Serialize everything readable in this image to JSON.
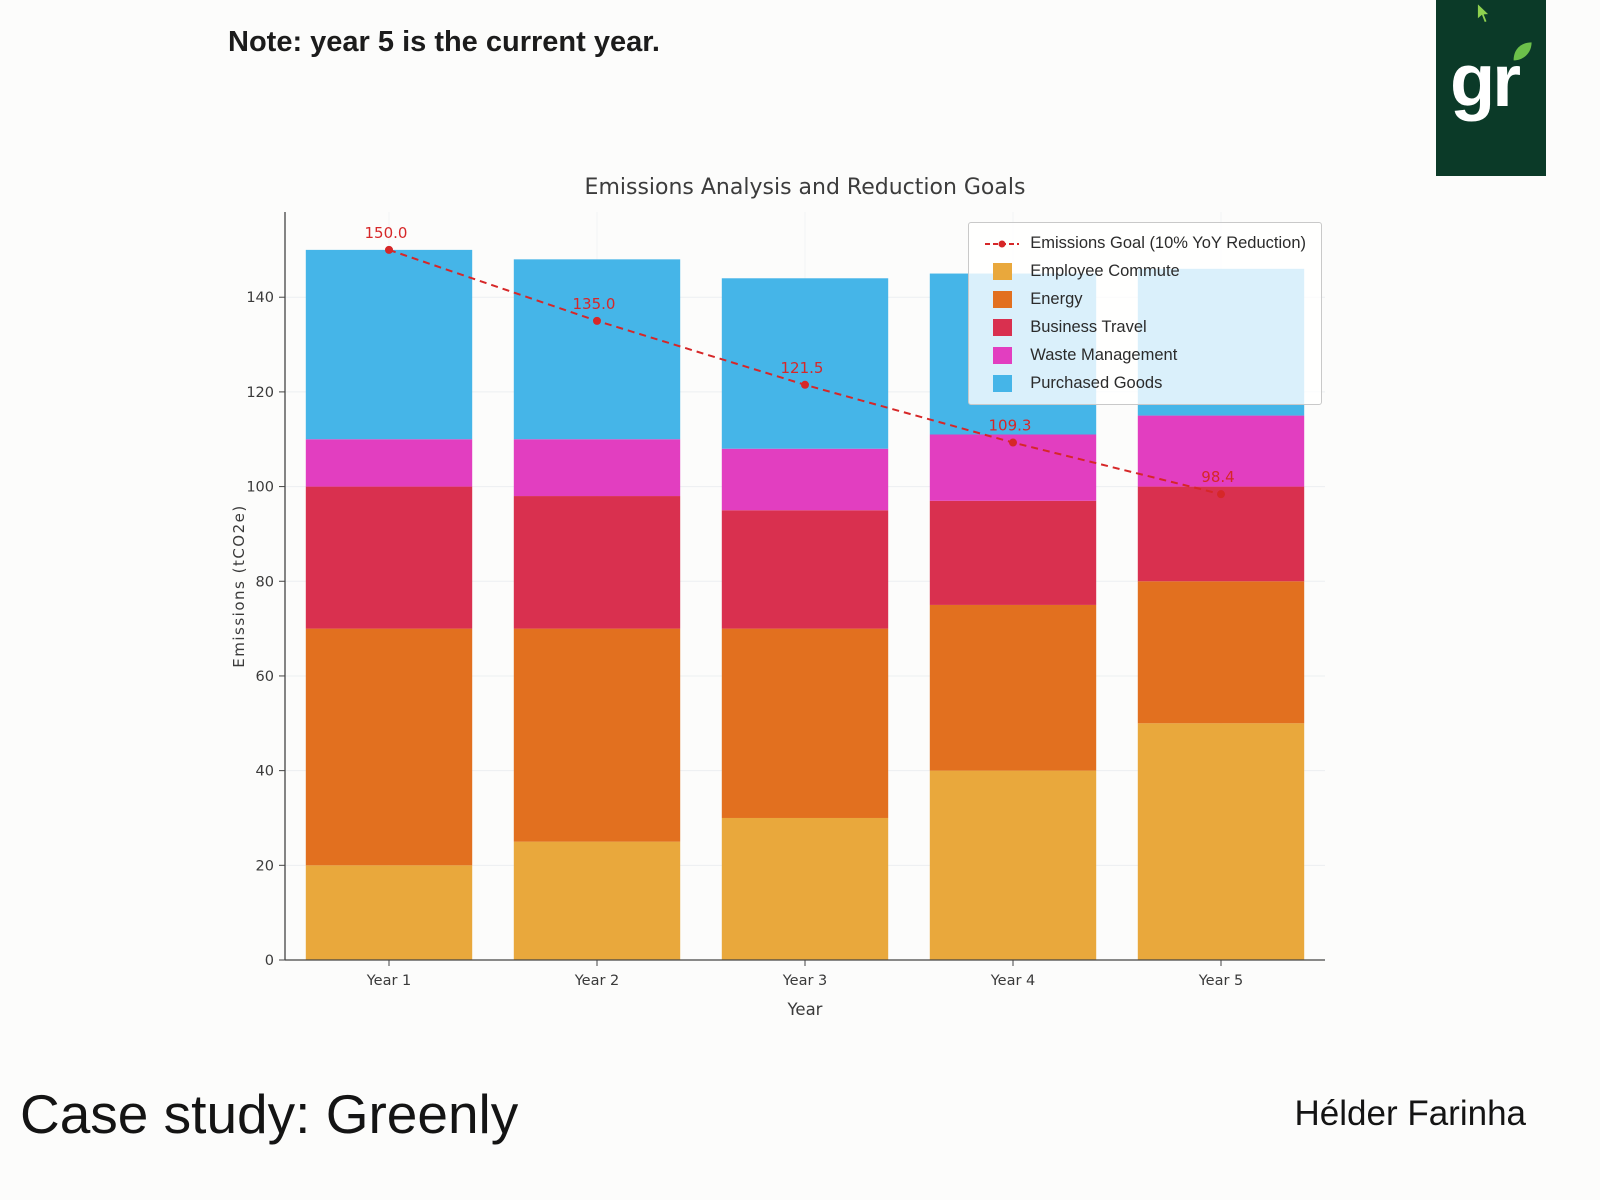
{
  "note": "Note: year 5 is the current year.",
  "logo": {
    "text": "gr",
    "bg_color": "#0b3a28",
    "leaf_color": "#6cc04a"
  },
  "footer": {
    "title": "Case study: Greenly",
    "author": "Hélder Farinha"
  },
  "chart_data": {
    "type": "bar",
    "stacked": true,
    "title": "Emissions Analysis and Reduction Goals",
    "xlabel": "Year",
    "ylabel": "Emissions (tCO2e)",
    "categories": [
      "Year 1",
      "Year 2",
      "Year 3",
      "Year 4",
      "Year 5"
    ],
    "series": [
      {
        "name": "Employee Commute",
        "color": "#E9A83C",
        "values": [
          20,
          25,
          30,
          40,
          50
        ]
      },
      {
        "name": "Energy",
        "color": "#E2701F",
        "values": [
          50,
          45,
          40,
          35,
          30
        ]
      },
      {
        "name": "Business Travel",
        "color": "#D9304F",
        "values": [
          30,
          28,
          25,
          22,
          20
        ]
      },
      {
        "name": "Waste Management",
        "color": "#E23EC0",
        "values": [
          10,
          12,
          13,
          14,
          15
        ]
      },
      {
        "name": "Purchased Goods",
        "color": "#45B5E8",
        "values": [
          40,
          38,
          36,
          34,
          31
        ]
      }
    ],
    "goal_line": {
      "name": "Emissions Goal (10% YoY Reduction)",
      "color": "#D62728",
      "values": [
        150.0,
        135.0,
        121.5,
        109.3,
        98.4
      ],
      "labels": [
        "150.0",
        "135.0",
        "121.5",
        "109.3",
        "98.4"
      ]
    },
    "ylim": [
      0,
      158
    ],
    "yticks": [
      0,
      20,
      40,
      60,
      80,
      100,
      120,
      140
    ],
    "legend_position": "upper right",
    "grid": true
  }
}
